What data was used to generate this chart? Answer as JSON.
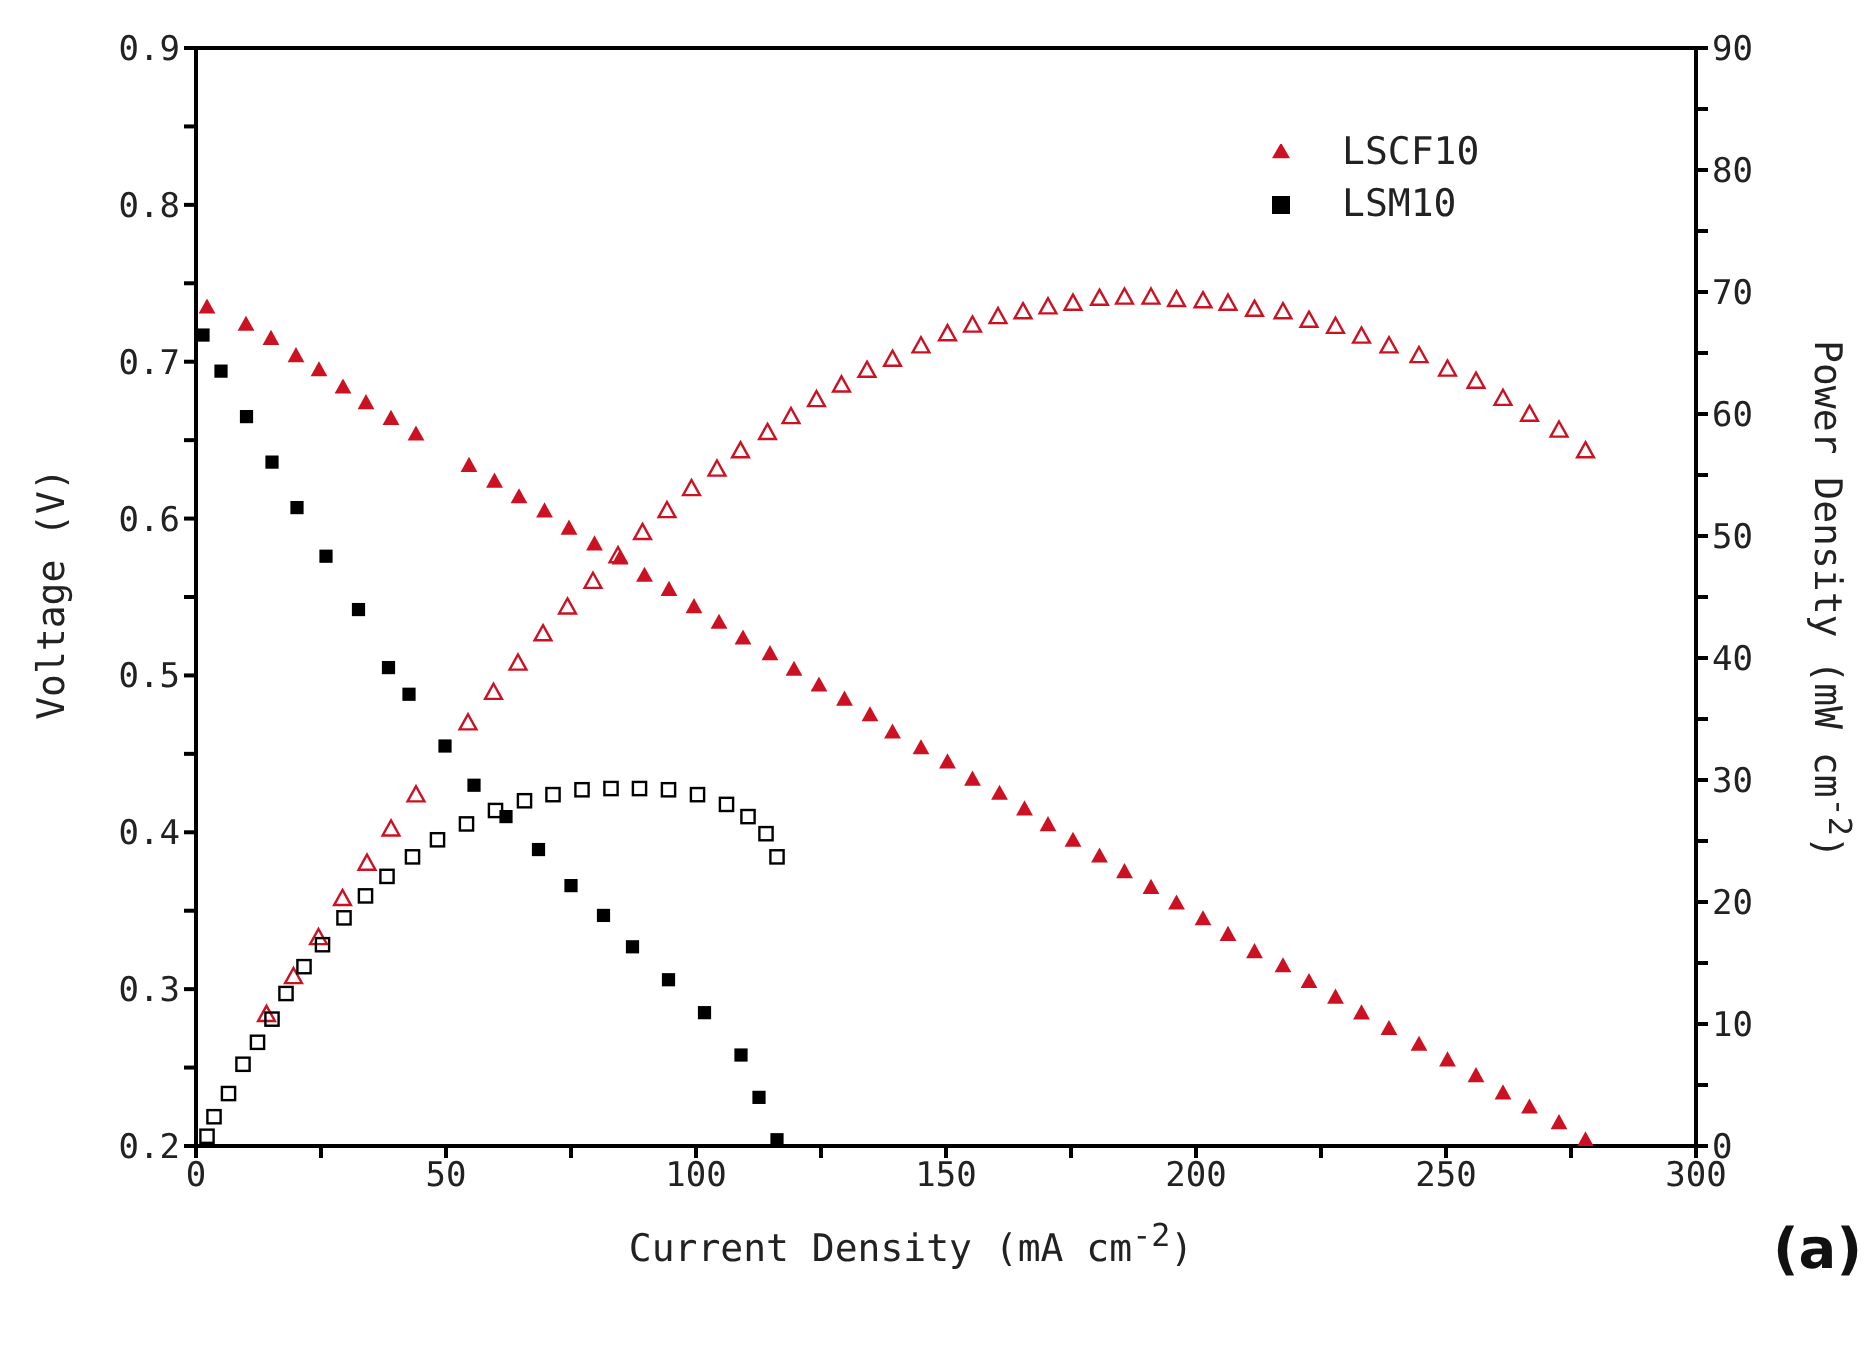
{
  "chart_data": {
    "type": "scatter",
    "xlabel": "Current Density (mA cm$^{-2}$)",
    "ylabel": "Voltage (V)",
    "y2label": "Power Density (mW cm$^{-2}$)",
    "annotations": [
      "(a)"
    ],
    "xlim": [
      0,
      300
    ],
    "xticks": [
      0,
      {
        "value": 25,
        "label": null
      },
      50,
      {
        "value": 75,
        "label": null
      },
      100,
      {
        "value": 125,
        "label": null
      },
      150,
      {
        "value": 175,
        "label": null
      },
      200,
      {
        "value": 225,
        "label": null
      },
      250,
      {
        "value": 275,
        "label": null
      },
      300
    ],
    "ylim": [
      0.2,
      0.9
    ],
    "yticks": [
      0.2,
      {
        "value": 0.25,
        "label": null
      },
      0.3,
      {
        "value": 0.35,
        "label": null
      },
      0.4,
      {
        "value": 0.45,
        "label": null
      },
      0.5,
      {
        "value": 0.55,
        "label": null
      },
      0.6,
      {
        "value": 0.65,
        "label": null
      },
      0.7,
      {
        "value": 0.75,
        "label": null
      },
      0.8,
      {
        "value": 0.85,
        "label": null
      },
      0.9
    ],
    "y2lim": [
      0,
      90
    ],
    "y2ticks": [
      0,
      {
        "value": 5,
        "label": null
      },
      10,
      {
        "value": 15,
        "label": null
      },
      20,
      {
        "value": 25,
        "label": null
      },
      30,
      {
        "value": 35,
        "label": null
      },
      40,
      {
        "value": 45,
        "label": null
      },
      50,
      {
        "value": 55,
        "label": null
      },
      60,
      {
        "value": 65,
        "label": null
      },
      70,
      {
        "value": 75,
        "label": null
      },
      80,
      {
        "value": 85,
        "label": null
      },
      90
    ],
    "grid": false,
    "legend": "top right",
    "series": [
      {
        "name": "LSCF10",
        "color": "#cc1122",
        "marker": "triangle",
        "x": [
          2.2,
          10,
          15,
          20,
          24.6,
          29.4,
          34,
          39,
          44,
          54.6,
          59.7,
          64.6,
          69.7,
          74.6,
          79.7,
          84.8,
          89.7,
          94.6,
          99.6,
          104.6,
          109.4,
          114.8,
          119.6,
          124.6,
          129.7,
          134.8,
          139.3,
          145,
          150.3,
          155.3,
          160.7,
          165.7,
          170.4,
          175.4,
          180.7,
          185.7,
          191,
          196.1,
          201.4,
          206.4,
          211.7,
          217.4,
          222.6,
          227.9,
          233.1,
          238.6,
          244.6,
          250.3,
          256,
          261.4,
          266.7,
          272.6,
          277.9
        ],
        "values": [
          0.735,
          0.724,
          0.715,
          0.704,
          0.695,
          0.684,
          0.674,
          0.664,
          0.654,
          0.634,
          0.624,
          0.614,
          0.605,
          0.594,
          0.584,
          0.575,
          0.564,
          0.555,
          0.544,
          0.534,
          0.524,
          0.514,
          0.504,
          0.494,
          0.485,
          0.475,
          0.464,
          0.454,
          0.445,
          0.434,
          0.425,
          0.415,
          0.405,
          0.395,
          0.385,
          0.375,
          0.365,
          0.355,
          0.345,
          0.335,
          0.324,
          0.315,
          0.305,
          0.295,
          0.285,
          0.275,
          0.265,
          0.255,
          0.245,
          0.234,
          0.225,
          0.215,
          0.204
        ]
      },
      {
        "name": "LSM10",
        "color": "#000000",
        "marker": "square",
        "x": [
          1.4,
          5,
          10.1,
          15.2,
          20.2,
          26,
          32.5,
          38.5,
          42.6,
          49.8,
          55.6,
          62,
          68.5,
          75,
          81.5,
          87.3,
          94.5,
          101.7,
          109,
          112.6,
          116.2
        ],
        "values": [
          0.717,
          0.694,
          0.665,
          0.636,
          0.607,
          0.576,
          0.542,
          0.505,
          0.488,
          0.455,
          0.43,
          0.41,
          0.389,
          0.366,
          0.347,
          0.327,
          0.306,
          0.285,
          0.258,
          0.231,
          0.204
        ]
      },
      {
        "color": "#cc1122",
        "marker": "triangle",
        "axis": "y2",
        "x": [
          14.1,
          19.5,
          24.5,
          29.3,
          34.2,
          39,
          44,
          54.4,
          59.5,
          64.4,
          69.4,
          74.3,
          79.4,
          84.4,
          89.3,
          94.2,
          99.1,
          104.2,
          108.9,
          114.3,
          119,
          124.1,
          129.1,
          134.2,
          139.3,
          145,
          150.3,
          155.3,
          160.4,
          165.4,
          170.4,
          175.4,
          180.7,
          185.7,
          191,
          196.1,
          201.4,
          206.4,
          211.7,
          217.4,
          222.6,
          227.9,
          233.1,
          238.6,
          244.6,
          250.3,
          256,
          261.4,
          266.7,
          272.6,
          277.9
        ],
        "values": [
          10.8,
          13.9,
          17.1,
          20.3,
          23.2,
          26,
          28.8,
          34.7,
          37.2,
          39.6,
          42,
          44.2,
          46.3,
          48.4,
          50.3,
          52.1,
          53.9,
          55.5,
          57,
          58.5,
          59.8,
          61.2,
          62.4,
          63.6,
          64.5,
          65.6,
          66.6,
          67.3,
          68,
          68.4,
          68.8,
          69.1,
          69.5,
          69.6,
          69.6,
          69.4,
          69.3,
          69.1,
          68.6,
          68.4,
          67.7,
          67.2,
          66.4,
          65.6,
          64.8,
          63.7,
          62.7,
          61.3,
          60,
          58.7,
          57
        ]
      },
      {
        "color": "#000000",
        "marker": "square",
        "axis": "y2",
        "x": [
          2.2,
          3.6,
          6.5,
          9.4,
          12.3,
          15.2,
          18,
          21.6,
          25.3,
          29.6,
          33.9,
          38.2,
          43.3,
          48.3,
          54.1,
          59.9,
          65.7,
          71.4,
          77.2,
          83,
          88.7,
          94.5,
          100.3,
          106.1,
          110.4,
          114,
          116.2
        ],
        "values": [
          0.8,
          2.4,
          4.3,
          6.7,
          8.5,
          10.4,
          12.5,
          14.7,
          16.5,
          18.7,
          20.5,
          22.1,
          23.7,
          25.1,
          26.4,
          27.5,
          28.3,
          28.8,
          29.2,
          29.3,
          29.3,
          29.2,
          28.8,
          28,
          27,
          25.6,
          23.7
        ]
      }
    ]
  }
}
